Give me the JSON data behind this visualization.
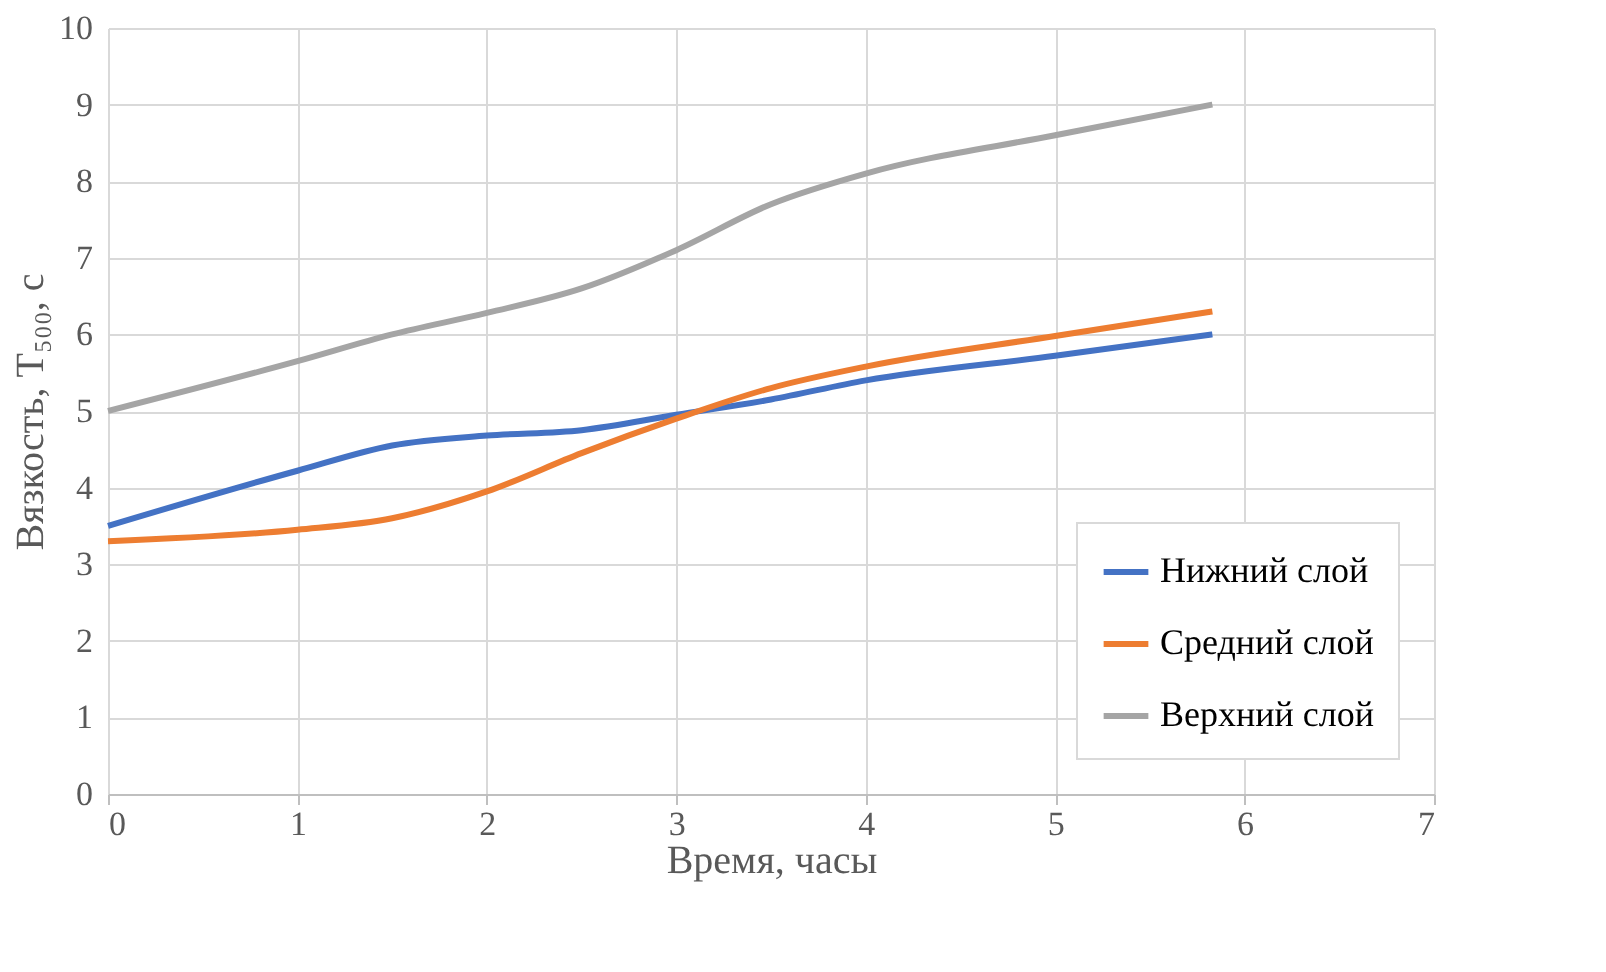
{
  "chart_data": {
    "type": "line",
    "xlabel": "Время, часы",
    "ylabel": "Вязкость, T₅₀₀, с",
    "x": [
      0,
      1,
      1.5,
      2,
      2.5,
      3,
      3.5,
      4,
      5,
      5.83
    ],
    "series": [
      {
        "name": "Нижний слой",
        "color": "#4472c4",
        "values": [
          3.5,
          4.22,
          4.55,
          4.68,
          4.75,
          4.95,
          5.15,
          5.4,
          5.72,
          6.0
        ]
      },
      {
        "name": "Средний слой",
        "color": "#ed7d31",
        "values": [
          3.3,
          3.45,
          3.6,
          3.95,
          4.45,
          4.9,
          5.3,
          5.58,
          5.98,
          6.3
        ]
      },
      {
        "name": "Верхний слой",
        "color": "#a5a5a5",
        "values": [
          5.0,
          5.65,
          6.0,
          6.28,
          6.6,
          7.1,
          7.7,
          8.1,
          8.6,
          9.0
        ]
      }
    ],
    "xlim": [
      0,
      7
    ],
    "xticks": [
      0,
      1,
      2,
      3,
      4,
      5,
      6,
      7
    ],
    "ylim": [
      0,
      10
    ],
    "yticks": [
      0,
      1,
      2,
      3,
      4,
      5,
      6,
      7,
      8,
      9,
      10
    ],
    "grid": true,
    "legend": "bottom right",
    "marker": "none",
    "line_style": "solid"
  }
}
